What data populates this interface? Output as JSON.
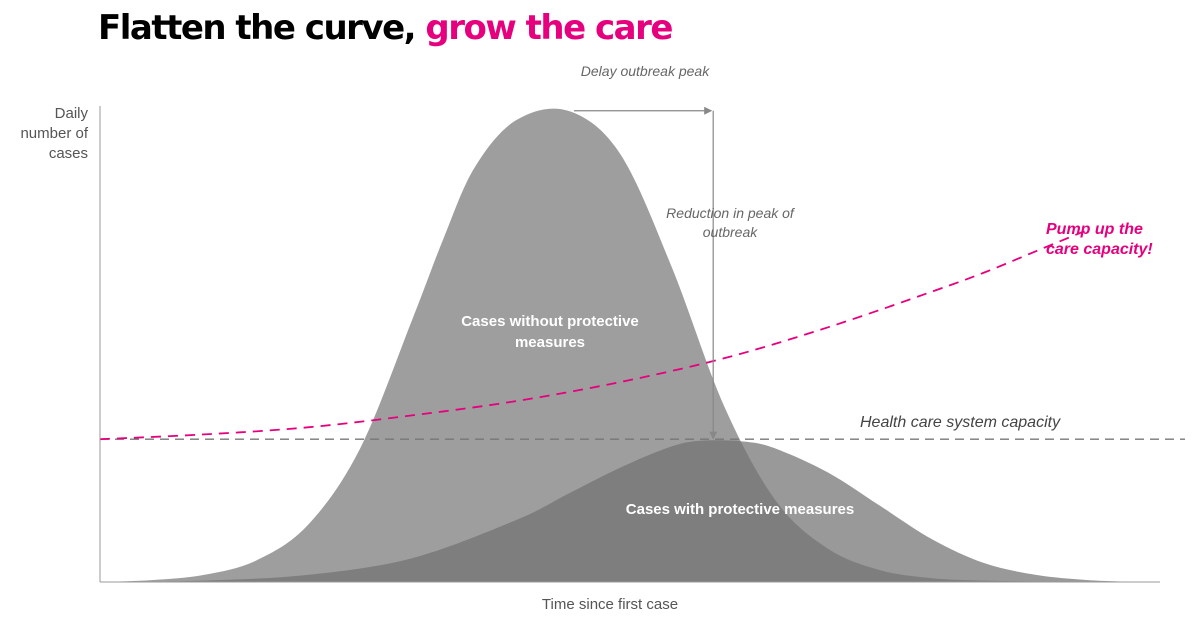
{
  "title": {
    "main": "Flatten the curve,",
    "highlight": "grow the care",
    "highlight_color": "#e6007e"
  },
  "chart_data": {
    "type": "area",
    "title": "Flatten the curve, grow the care",
    "xlabel": "Time since first case",
    "ylabel": "Daily number of cases",
    "xlim": [
      0,
      100
    ],
    "ylim": [
      0,
      100
    ],
    "grid": false,
    "series": [
      {
        "name": "Cases without protective measures",
        "x": [
          0,
          5,
          10,
          15,
          20,
          25,
          30,
          33,
          36,
          40,
          45,
          50,
          55,
          60,
          65,
          70,
          75,
          80,
          85,
          90,
          95,
          100
        ],
        "values": [
          0,
          0.4,
          1.5,
          4.5,
          12,
          28,
          55,
          72,
          87,
          97,
          99,
          90,
          66,
          37,
          17,
          7,
          2.5,
          0.8,
          0.3,
          0.1,
          0,
          0
        ],
        "color": "#9e9e9e"
      },
      {
        "name": "Cases with protective measures",
        "x": [
          0,
          10,
          20,
          30,
          40,
          45,
          50,
          55,
          58,
          62,
          65,
          70,
          75,
          80,
          85,
          90,
          95,
          100
        ],
        "values": [
          0,
          0.3,
          1.5,
          5,
          13,
          18.5,
          24,
          28.5,
          29.7,
          29.5,
          28,
          23,
          16,
          9,
          4,
          1.5,
          0.4,
          0
        ],
        "color": "#727272"
      },
      {
        "name": "Pump up the care capacity!",
        "x": [
          0,
          10,
          20,
          30,
          40,
          50,
          60,
          70,
          80,
          85,
          90,
          95
        ],
        "values": [
          30,
          31,
          32.5,
          35,
          38,
          42,
          47,
          53.5,
          61,
          65,
          69.5,
          74
        ],
        "color": "#e6007e",
        "style": "dashed"
      }
    ],
    "threshold": {
      "label": "Health care system capacity",
      "value": 30,
      "color": "#777777",
      "style": "dashed"
    },
    "annotations": {
      "delay": "Delay outbreak peak",
      "reduction": "Reduction in peak of outbreak",
      "pump_up": "Pump up the care capacity!"
    }
  }
}
